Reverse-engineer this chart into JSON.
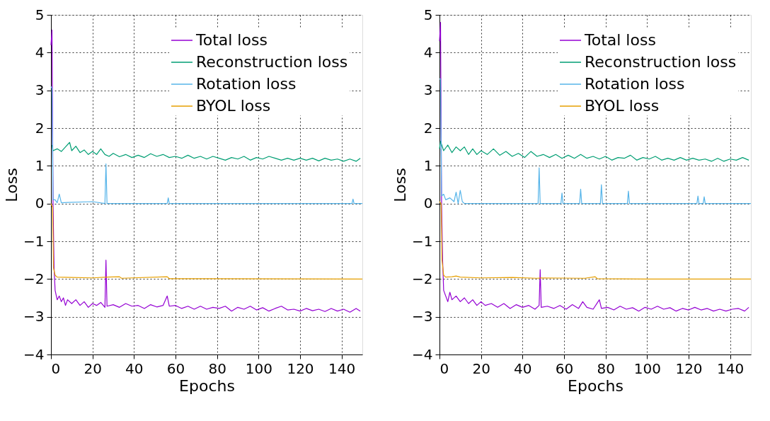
{
  "chart_data": [
    {
      "type": "line",
      "xlabel": "Epochs",
      "ylabel": "Loss",
      "xlim": [
        0,
        150
      ],
      "xticks": [
        0,
        20,
        40,
        60,
        80,
        100,
        120,
        140
      ],
      "ylim": [
        -4,
        5
      ],
      "yticks": [
        -4,
        -3,
        -2,
        -1,
        0,
        1,
        2,
        3,
        4,
        5
      ],
      "grid": true,
      "legend": "top right",
      "line_style": "solid",
      "marker": "none",
      "series": [
        {
          "name": "Total loss",
          "color": "#9400d3",
          "x": [
            0,
            0.5,
            1,
            1.5,
            2,
            3,
            4,
            5,
            6,
            7,
            8,
            10,
            12,
            14,
            16,
            18,
            20,
            22,
            24,
            26,
            26.5,
            27,
            30,
            33,
            36,
            39,
            42,
            45,
            48,
            51,
            54,
            56,
            57,
            60,
            63,
            66,
            69,
            72,
            75,
            78,
            81,
            84,
            87,
            90,
            93,
            96,
            99,
            102,
            105,
            108,
            111,
            114,
            117,
            120,
            123,
            126,
            129,
            132,
            135,
            138,
            141,
            144,
            147,
            149
          ],
          "values": [
            4.2,
            4.6,
            0.0,
            -1.7,
            -2.3,
            -2.55,
            -2.45,
            -2.6,
            -2.5,
            -2.7,
            -2.55,
            -2.65,
            -2.55,
            -2.7,
            -2.6,
            -2.75,
            -2.65,
            -2.7,
            -2.62,
            -2.75,
            -1.5,
            -2.72,
            -2.68,
            -2.75,
            -2.65,
            -2.72,
            -2.7,
            -2.78,
            -2.68,
            -2.74,
            -2.7,
            -2.45,
            -2.72,
            -2.7,
            -2.78,
            -2.72,
            -2.8,
            -2.72,
            -2.8,
            -2.75,
            -2.78,
            -2.72,
            -2.85,
            -2.75,
            -2.8,
            -2.72,
            -2.82,
            -2.76,
            -2.85,
            -2.78,
            -2.72,
            -2.82,
            -2.8,
            -2.85,
            -2.78,
            -2.84,
            -2.8,
            -2.86,
            -2.78,
            -2.85,
            -2.8,
            -2.88,
            -2.78,
            -2.85
          ]
        },
        {
          "name": "Reconstruction loss",
          "color": "#009e73",
          "x": [
            0.5,
            1,
            3,
            5,
            7,
            9,
            10,
            12,
            14,
            16,
            18,
            20,
            22,
            24,
            26,
            28,
            30,
            33,
            36,
            39,
            42,
            45,
            48,
            51,
            54,
            57,
            60,
            63,
            66,
            69,
            72,
            75,
            78,
            81,
            84,
            87,
            90,
            93,
            96,
            99,
            102,
            105,
            108,
            111,
            114,
            117,
            120,
            123,
            126,
            129,
            132,
            135,
            138,
            141,
            144,
            147,
            149
          ],
          "values": [
            1.55,
            1.4,
            1.45,
            1.38,
            1.5,
            1.62,
            1.4,
            1.52,
            1.35,
            1.42,
            1.3,
            1.38,
            1.3,
            1.45,
            1.3,
            1.25,
            1.33,
            1.24,
            1.3,
            1.22,
            1.28,
            1.22,
            1.32,
            1.25,
            1.3,
            1.22,
            1.25,
            1.2,
            1.28,
            1.2,
            1.25,
            1.18,
            1.25,
            1.2,
            1.15,
            1.22,
            1.18,
            1.25,
            1.15,
            1.22,
            1.18,
            1.25,
            1.2,
            1.15,
            1.2,
            1.15,
            1.2,
            1.15,
            1.2,
            1.13,
            1.2,
            1.15,
            1.18,
            1.12,
            1.18,
            1.12,
            1.2
          ]
        },
        {
          "name": "Rotation loss",
          "color": "#56b4e9",
          "x": [
            0,
            0.5,
            1,
            2,
            3,
            4,
            5,
            8,
            20,
            26,
            26.5,
            27,
            56,
            56.5,
            57,
            145,
            145.5,
            146,
            150
          ],
          "values": [
            3.1,
            3.05,
            0.1,
            0.1,
            0.02,
            0.25,
            0.02,
            0.03,
            0.05,
            0,
            1.05,
            0,
            0,
            0.15,
            0,
            0,
            0.12,
            0,
            0
          ]
        },
        {
          "name": "BYOL loss",
          "color": "#e69f00",
          "x": [
            0,
            0.8,
            1.2,
            2,
            3,
            10,
            20,
            27,
            33,
            34,
            56,
            57,
            75,
            150
          ],
          "values": [
            0.0,
            -0.1,
            -1.7,
            -1.9,
            -1.95,
            -1.96,
            -1.97,
            -1.95,
            -1.94,
            -1.98,
            -1.94,
            -1.99,
            -1.99,
            -2.0
          ]
        }
      ]
    },
    {
      "type": "line",
      "xlabel": "Epochs",
      "ylabel": "Loss",
      "xlim": [
        0,
        150
      ],
      "xticks": [
        0,
        20,
        40,
        60,
        80,
        100,
        120,
        140
      ],
      "ylim": [
        -4,
        5
      ],
      "yticks": [
        -4,
        -3,
        -2,
        -1,
        0,
        1,
        2,
        3,
        4,
        5
      ],
      "grid": true,
      "legend": "top right",
      "line_style": "solid",
      "marker": "none",
      "series": [
        {
          "name": "Total loss",
          "color": "#9400d3",
          "x": [
            0,
            0.5,
            1,
            1.5,
            2,
            3,
            4,
            5,
            6,
            8,
            10,
            12,
            14,
            16,
            18,
            20,
            22,
            25,
            28,
            31,
            34,
            37,
            40,
            43,
            46,
            48,
            48.5,
            49,
            52,
            55,
            58,
            61,
            64,
            67,
            69,
            71,
            74,
            77,
            78,
            81,
            84,
            87,
            90,
            93,
            96,
            99,
            102,
            105,
            108,
            111,
            114,
            117,
            120,
            123,
            126,
            129,
            132,
            135,
            138,
            141,
            144,
            147,
            149
          ],
          "values": [
            4.3,
            4.8,
            0.0,
            -1.5,
            -2.3,
            -2.45,
            -2.6,
            -2.35,
            -2.55,
            -2.45,
            -2.6,
            -2.5,
            -2.65,
            -2.55,
            -2.7,
            -2.6,
            -2.7,
            -2.65,
            -2.75,
            -2.65,
            -2.78,
            -2.68,
            -2.75,
            -2.7,
            -2.8,
            -2.7,
            -1.75,
            -2.75,
            -2.72,
            -2.78,
            -2.7,
            -2.8,
            -2.68,
            -2.78,
            -2.6,
            -2.75,
            -2.8,
            -2.55,
            -2.78,
            -2.75,
            -2.82,
            -2.72,
            -2.8,
            -2.76,
            -2.85,
            -2.75,
            -2.8,
            -2.72,
            -2.8,
            -2.76,
            -2.85,
            -2.78,
            -2.82,
            -2.75,
            -2.82,
            -2.78,
            -2.85,
            -2.8,
            -2.85,
            -2.8,
            -2.78,
            -2.85,
            -2.75
          ]
        },
        {
          "name": "Reconstruction loss",
          "color": "#009e73",
          "x": [
            0,
            0.5,
            2,
            4,
            6,
            8,
            10,
            12,
            14,
            16,
            18,
            20,
            23,
            26,
            29,
            32,
            35,
            38,
            41,
            44,
            47,
            50,
            53,
            56,
            59,
            62,
            65,
            68,
            71,
            74,
            77,
            80,
            83,
            86,
            89,
            92,
            95,
            98,
            101,
            104,
            107,
            110,
            113,
            116,
            119,
            122,
            125,
            128,
            131,
            134,
            137,
            140,
            143,
            146,
            149
          ],
          "values": [
            1.45,
            1.65,
            1.4,
            1.55,
            1.35,
            1.5,
            1.4,
            1.5,
            1.3,
            1.45,
            1.3,
            1.4,
            1.3,
            1.45,
            1.28,
            1.38,
            1.25,
            1.33,
            1.22,
            1.38,
            1.25,
            1.3,
            1.22,
            1.3,
            1.2,
            1.28,
            1.2,
            1.3,
            1.2,
            1.25,
            1.18,
            1.25,
            1.15,
            1.22,
            1.2,
            1.28,
            1.15,
            1.22,
            1.18,
            1.25,
            1.15,
            1.2,
            1.15,
            1.22,
            1.15,
            1.2,
            1.15,
            1.18,
            1.12,
            1.2,
            1.12,
            1.18,
            1.15,
            1.22,
            1.15
          ]
        },
        {
          "name": "Rotation loss",
          "color": "#56b4e9",
          "x": [
            0,
            0.5,
            1,
            2,
            3,
            5,
            7,
            8,
            9,
            10,
            11,
            12,
            35,
            47.5,
            48,
            48.5,
            58.5,
            59,
            59.5,
            67.5,
            68,
            68.5,
            77.5,
            78,
            78.5,
            90.5,
            91,
            91.5,
            124,
            124.5,
            125,
            127,
            127.5,
            128,
            150
          ],
          "values": [
            3.3,
            3.3,
            0.2,
            0.25,
            0.1,
            0.15,
            0.05,
            0.3,
            0,
            0.35,
            0.05,
            0,
            0,
            0,
            0.95,
            0,
            0,
            0.28,
            0,
            0,
            0.38,
            0,
            0,
            0.5,
            0,
            0,
            0.33,
            0,
            0,
            0.2,
            0,
            0,
            0.18,
            0,
            0
          ]
        },
        {
          "name": "BYOL loss",
          "color": "#e69f00",
          "x": [
            0,
            0.8,
            1.2,
            2,
            3,
            6,
            8,
            10,
            20,
            35,
            47,
            49,
            70,
            75,
            76,
            100,
            150
          ],
          "values": [
            0.05,
            0,
            -1.5,
            -1.9,
            -1.95,
            -1.94,
            -1.92,
            -1.95,
            -1.97,
            -1.96,
            -1.98,
            -1.97,
            -1.98,
            -1.94,
            -1.99,
            -2.0,
            -2.0
          ]
        }
      ]
    }
  ]
}
